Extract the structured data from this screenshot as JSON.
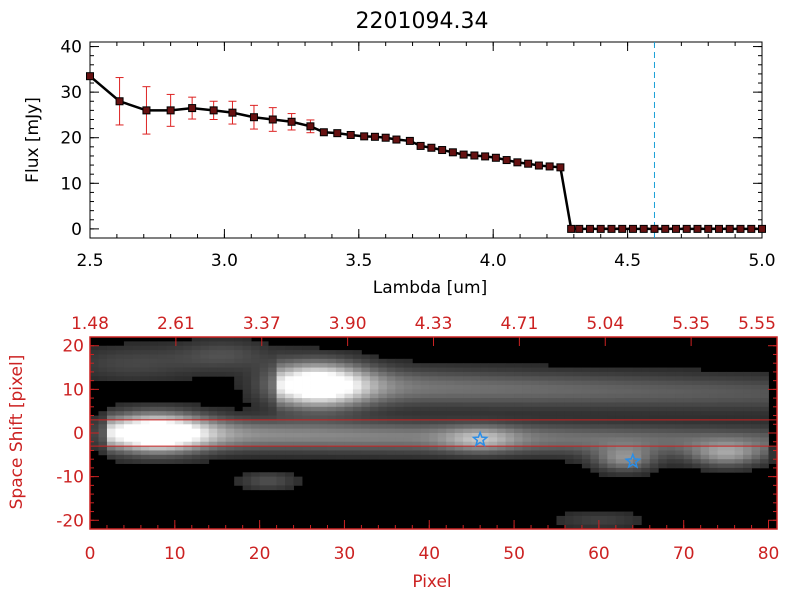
{
  "colors": {
    "axis_black": "#000000",
    "accent_red": "#cc2222",
    "error_bar_red": "#dd2222",
    "marker_dark_red": "#661111",
    "dashed_line": "#1aa0d8",
    "star_blue": "#2a8ee8",
    "image_background": "#000000"
  },
  "chart_data": [
    {
      "type": "line",
      "title": "2201094.34",
      "xlabel": "Lambda [um]",
      "ylabel": "Flux [mJy]",
      "xlim": [
        2.5,
        5.0
      ],
      "ylim": [
        -2,
        41
      ],
      "x_ticks": [
        "2.5",
        "3.0",
        "3.5",
        "4.0",
        "4.5",
        "5.0"
      ],
      "y_ticks": [
        "0",
        "10",
        "20",
        "30",
        "40"
      ],
      "grid": false,
      "series": [
        {
          "x": [
            2.5,
            2.61,
            2.71,
            2.8,
            2.88,
            2.96,
            3.03,
            3.11,
            3.18,
            3.25,
            3.32,
            3.37,
            3.42,
            3.47,
            3.52,
            3.56,
            3.6,
            3.64,
            3.69,
            3.73,
            3.77,
            3.81,
            3.85,
            3.89,
            3.93,
            3.97,
            4.01,
            4.05,
            4.09,
            4.13,
            4.17,
            4.21,
            4.25,
            4.29,
            4.32,
            4.36,
            4.4,
            4.44,
            4.48,
            4.52,
            4.56,
            4.6,
            4.64,
            4.68,
            4.72,
            4.76,
            4.8,
            4.84,
            4.88,
            4.92,
            4.96,
            5.0
          ],
          "values": [
            33.5,
            28,
            26,
            26,
            26.5,
            26,
            25.5,
            24.5,
            24,
            23.5,
            22.5,
            21.2,
            21,
            20.6,
            20.3,
            20.2,
            20,
            19.6,
            19.3,
            18.2,
            17.8,
            17.3,
            16.8,
            16.3,
            16.1,
            15.9,
            15.6,
            15.1,
            14.6,
            14.3,
            13.9,
            13.7,
            13.5,
            0,
            0,
            0,
            0,
            0,
            0,
            0,
            0,
            0,
            0,
            0,
            0,
            0,
            0,
            0,
            0,
            0,
            0,
            0
          ],
          "errors": [
            0,
            5.2,
            5.2,
            3.5,
            2.4,
            2.0,
            2.5,
            2.6,
            2.6,
            1.8,
            1.4,
            0,
            0,
            0,
            0,
            0,
            0,
            0,
            0,
            0,
            0,
            0,
            0,
            0,
            0,
            0,
            0,
            0,
            0,
            0,
            0,
            0,
            0,
            0,
            0,
            0,
            0,
            0,
            0,
            0,
            0,
            0,
            0,
            0,
            0,
            0,
            0,
            0,
            0,
            0,
            0,
            0
          ]
        }
      ],
      "vline": 4.6,
      "annotations": []
    },
    {
      "type": "heatmap",
      "xlabel": "Pixel",
      "ylabel": "Space Shift [pixel]",
      "xlim": [
        0,
        81
      ],
      "ylim": [
        -22,
        22
      ],
      "x_ticks": [
        "0",
        "10",
        "20",
        "30",
        "40",
        "50",
        "60",
        "70",
        "80"
      ],
      "y_ticks": [
        "-20",
        "-10",
        "0",
        "10",
        "20"
      ],
      "top_axis_ticks": [
        "1.48",
        "2.61",
        "3.37",
        "3.90",
        "4.33",
        "4.71",
        "5.04",
        "5.35",
        "5.55"
      ],
      "hlines": [
        3,
        -3
      ],
      "stars": [
        {
          "x": 46,
          "y": -1.5
        },
        {
          "x": 64,
          "y": -6.5
        }
      ],
      "traces": [
        {
          "x_start": 2,
          "x_end": 80,
          "y_start": 0,
          "y_end": -2,
          "width": 2.5,
          "brightness": 0.55
        },
        {
          "x_start": 22,
          "x_end": 80,
          "y_start": 11,
          "y_end": 9,
          "width": 3,
          "brightness": 0.45
        }
      ],
      "blobs": [
        {
          "x": 8,
          "y": 0,
          "sx": 4,
          "sy": 3,
          "brightness": 1.0
        },
        {
          "x": 27,
          "y": 11,
          "sx": 4,
          "sy": 3.5,
          "brightness": 0.95
        },
        {
          "x": 46,
          "y": -1.5,
          "sx": 3,
          "sy": 2,
          "brightness": 0.35
        },
        {
          "x": 63,
          "y": -6,
          "sx": 2.5,
          "sy": 2,
          "brightness": 0.45
        },
        {
          "x": 75,
          "y": -5,
          "sx": 3,
          "sy": 2,
          "brightness": 0.45
        },
        {
          "x": 21,
          "y": -11,
          "sx": 2.5,
          "sy": 1.5,
          "brightness": 0.22
        },
        {
          "x": 5,
          "y": 16,
          "sx": 6,
          "sy": 3,
          "brightness": 0.18
        },
        {
          "x": 16,
          "y": 18,
          "sx": 4,
          "sy": 2.5,
          "brightness": 0.2
        },
        {
          "x": 60,
          "y": -20,
          "sx": 4,
          "sy": 1.5,
          "brightness": 0.15
        }
      ]
    }
  ]
}
